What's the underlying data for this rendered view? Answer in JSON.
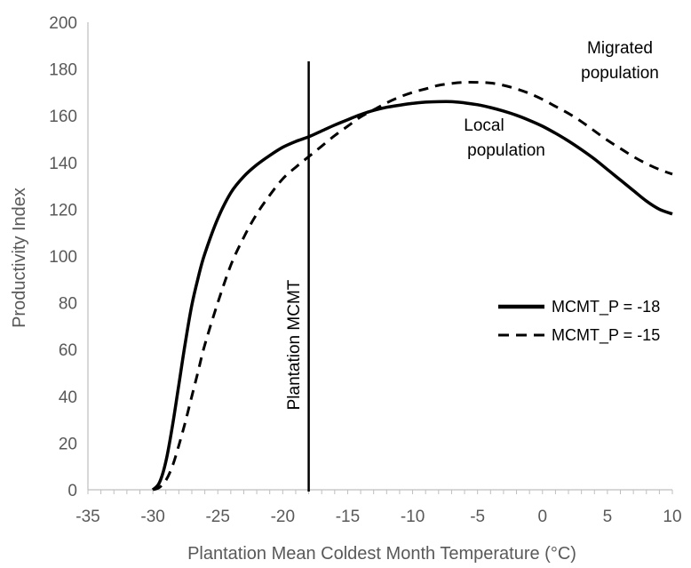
{
  "chart_data": {
    "type": "line",
    "title": "",
    "xlabel": "Plantation Mean Coldest Month Temperature (°C)",
    "ylabel": "Productivity Index",
    "xlim": [
      -35,
      10
    ],
    "ylim": [
      0,
      200
    ],
    "x_ticks": [
      -35,
      -30,
      -25,
      -20,
      -15,
      -10,
      -5,
      0,
      5,
      10
    ],
    "y_ticks": [
      0,
      20,
      40,
      60,
      80,
      100,
      120,
      140,
      160,
      180,
      200
    ],
    "grid": false,
    "legend_position": "right",
    "series": [
      {
        "name": "MCMT_P = -18",
        "style": "solid",
        "color": "#000000",
        "x": [
          -30,
          -29.5,
          -29,
          -28.5,
          -28,
          -27.5,
          -27,
          -26.5,
          -26,
          -25,
          -24,
          -23,
          -22,
          -21,
          -20,
          -19,
          -18,
          -17,
          -16,
          -15,
          -14,
          -13,
          -12,
          -11,
          -10,
          -9,
          -8,
          -7,
          -6,
          -5,
          -4,
          -3,
          -2,
          -1,
          0,
          1,
          2,
          3,
          4,
          5,
          6,
          7,
          8,
          9,
          10
        ],
        "y": [
          0,
          3,
          12,
          27,
          45,
          63,
          79,
          91,
          101,
          116,
          127,
          134,
          139,
          143,
          146.5,
          149,
          151,
          153.5,
          156,
          158.3,
          160.5,
          162.3,
          163.6,
          164.5,
          165.3,
          165.8,
          166,
          166,
          165.5,
          164.7,
          163.5,
          162,
          160.2,
          158,
          155.5,
          152.5,
          149.2,
          145.5,
          141.5,
          137,
          132.5,
          128,
          123.5,
          120,
          118
        ]
      },
      {
        "name": "MCMT_P = -15",
        "style": "dashed",
        "color": "#000000",
        "x": [
          -30,
          -29.5,
          -29,
          -28.5,
          -28,
          -27.5,
          -27,
          -26.5,
          -26,
          -25,
          -24,
          -23,
          -22,
          -21,
          -20,
          -19,
          -18,
          -17,
          -16,
          -15,
          -14,
          -13,
          -12,
          -11,
          -10,
          -9,
          -8,
          -7,
          -6,
          -5,
          -4,
          -3,
          -2,
          -1,
          0,
          1,
          2,
          3,
          4,
          5,
          6,
          7,
          8,
          9,
          10
        ],
        "y": [
          0,
          1,
          4,
          10,
          19,
          29,
          40,
          51,
          62,
          80,
          96,
          108,
          118,
          126,
          133,
          138,
          142.5,
          147,
          151.5,
          155.5,
          159.5,
          162.5,
          165.5,
          168,
          170,
          171.5,
          173,
          173.8,
          174.3,
          174.3,
          174,
          173,
          171.5,
          169.5,
          167,
          164,
          161,
          157.5,
          153.5,
          149.5,
          146,
          142.5,
          139.5,
          137,
          135
        ]
      }
    ],
    "vertical_line": {
      "x": -18,
      "label": "Plantation MCMT"
    },
    "annotations": [
      {
        "lines": [
          "Migrated",
          "population"
        ]
      },
      {
        "lines": [
          "Local",
          "population"
        ]
      }
    ]
  }
}
